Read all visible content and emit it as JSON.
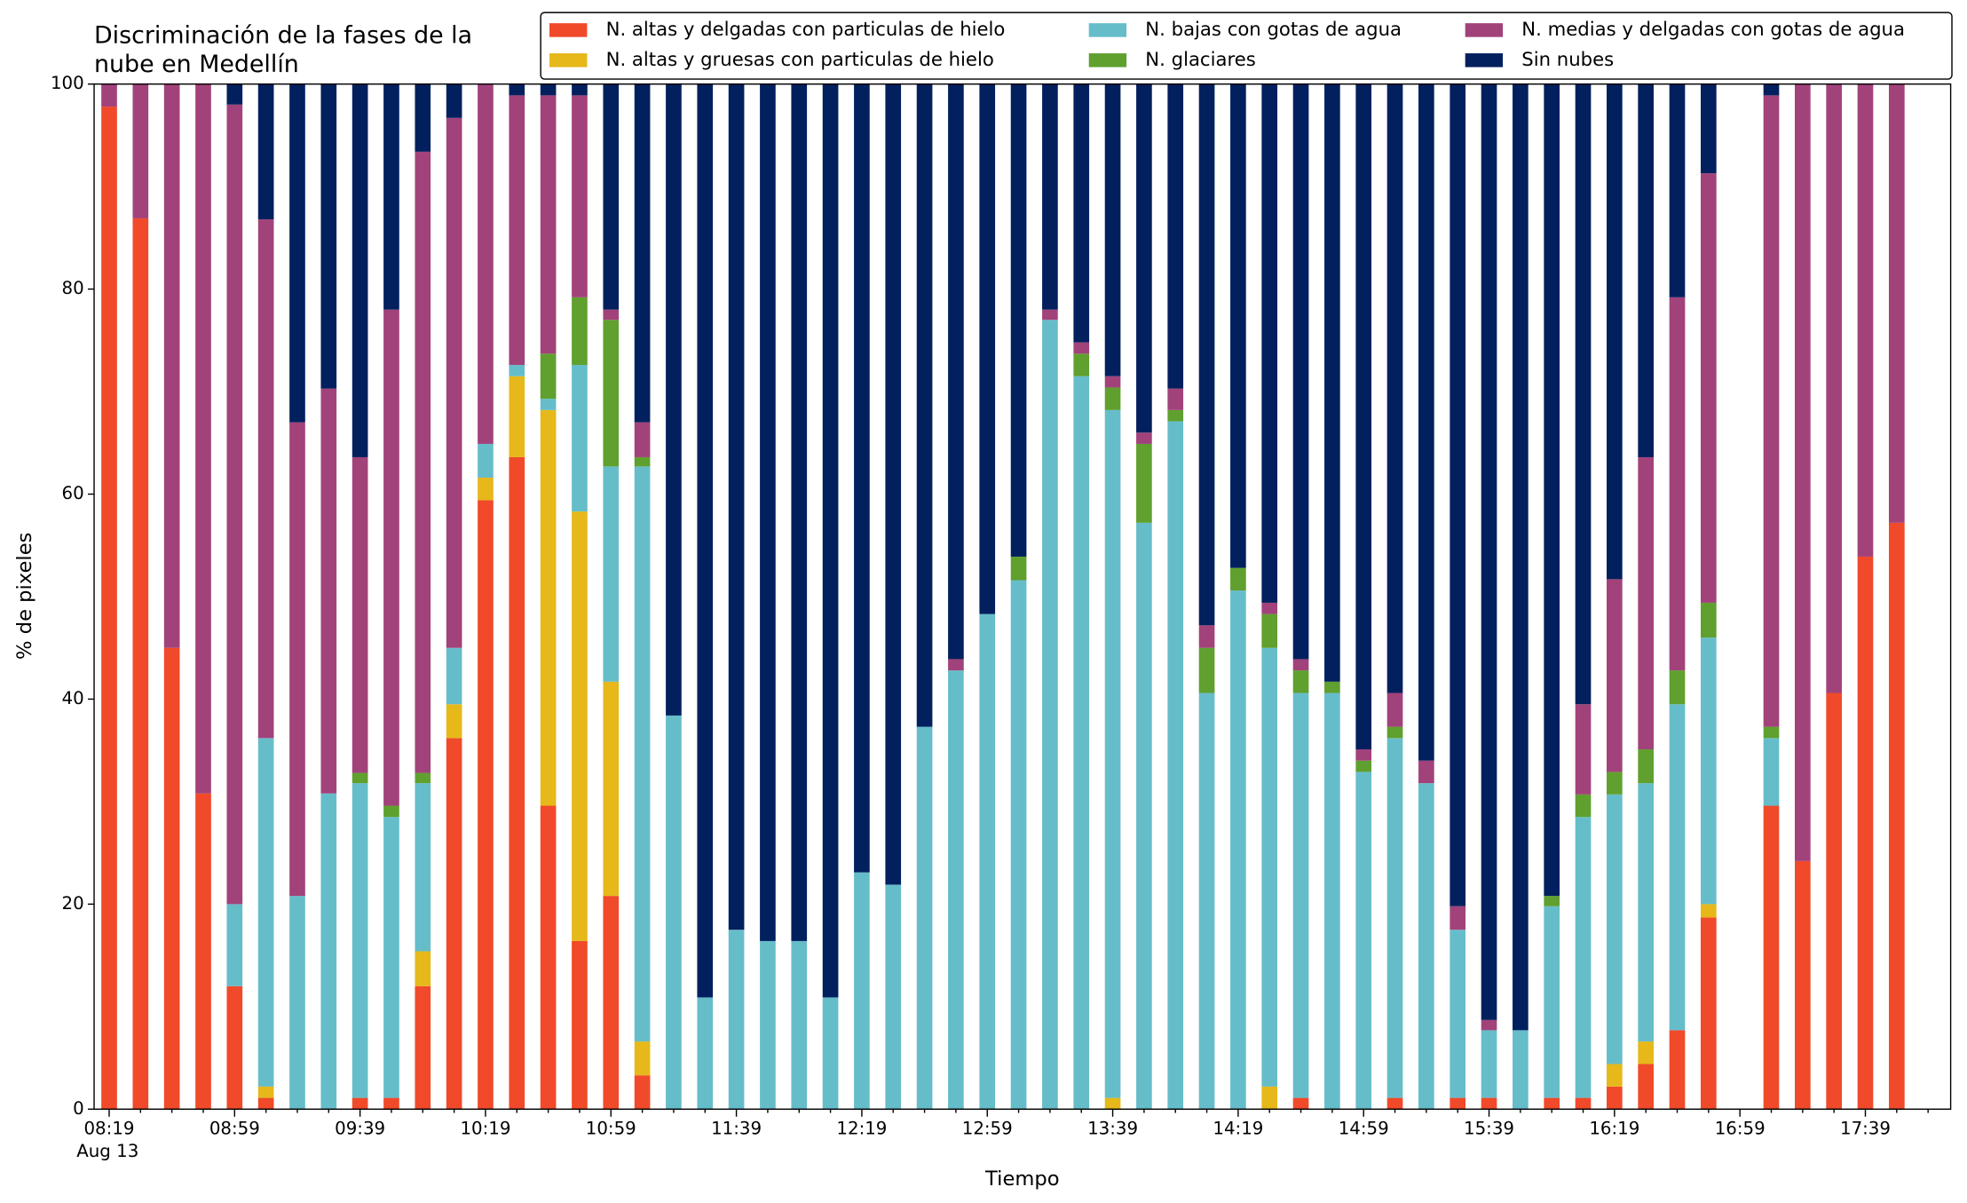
{
  "chart_data": {
    "type": "stacked_bar",
    "title": [
      "Discriminación de la fases de la",
      "nube en Medellín"
    ],
    "x_label": "Tiempo",
    "y_label": "% de pixeles",
    "categories": [
      "08:19",
      null,
      null,
      null,
      "08:59",
      null,
      null,
      null,
      "09:39",
      null,
      null,
      null,
      "10:19",
      null,
      null,
      null,
      "10:59",
      null,
      null,
      null,
      "11:39",
      null,
      null,
      null,
      "12:19",
      null,
      null,
      null,
      "12:59",
      null,
      null,
      null,
      "13:39",
      null,
      null,
      null,
      "14:19",
      null,
      null,
      null,
      "14:59",
      null,
      null,
      null,
      "15:39",
      null,
      null,
      null,
      "16:19",
      null,
      null,
      null,
      "16:59",
      null,
      null,
      null,
      "17:39",
      null
    ],
    "x_sublabel": "Aug 13",
    "ylim": [
      0,
      100
    ],
    "yticks": [
      0,
      20,
      40,
      60,
      80,
      100
    ],
    "series": [
      {
        "name": "N. altas y delgadas con particulas de hielo",
        "color": "#f04a2a",
        "values": [
          97.8,
          86.9,
          45,
          30.8,
          12,
          1.1,
          0,
          0,
          1.1,
          1.1,
          12,
          36.2,
          59.4,
          63.6,
          29.6,
          16.4,
          20.8,
          3.3,
          0,
          0,
          0,
          0,
          0,
          0,
          0,
          0,
          0,
          0,
          0,
          0,
          0,
          0,
          0,
          0,
          0,
          0,
          0,
          0,
          1.1,
          0,
          0,
          1.1,
          0,
          1.1,
          1.1,
          0,
          1.1,
          1.1,
          2.2,
          4.4,
          7.7,
          18.7,
          0,
          29.6,
          24.2,
          40.6,
          53.9,
          57.2
        ]
      },
      {
        "name": "N. altas y gruesas con particulas de hielo",
        "color": "#e6b81a",
        "values": [
          0,
          0,
          0,
          0,
          0,
          1.1,
          0,
          0,
          0,
          0,
          3.4,
          3.3,
          2.2,
          7.9,
          38.6,
          41.9,
          20.9,
          3.3,
          0,
          0,
          0,
          0,
          0,
          0,
          0,
          0,
          0,
          0,
          0,
          0,
          0,
          0,
          1.1,
          0,
          0,
          0,
          0,
          2.2,
          0,
          0,
          0,
          0,
          0,
          0,
          0,
          0,
          0,
          0,
          2.2,
          2.2,
          0,
          1.3,
          0,
          0,
          0,
          0,
          0,
          0
        ]
      },
      {
        "name": "N. bajas con gotas de agua",
        "color": "#66bdca",
        "values": [
          0,
          0,
          0,
          0,
          8,
          34,
          20.8,
          30.8,
          30.7,
          27.4,
          16.4,
          5.5,
          3.3,
          1.1,
          1.1,
          14.3,
          21,
          56.1,
          38.4,
          10.9,
          17.5,
          16.4,
          16.4,
          10.9,
          23.1,
          21.9,
          37.3,
          42.8,
          48.3,
          51.6,
          77,
          71.5,
          67.1,
          57.2,
          67.1,
          40.6,
          50.6,
          42.8,
          39.5,
          40.6,
          32.9,
          35.1,
          31.8,
          16.4,
          6.6,
          7.7,
          18.7,
          27.4,
          26.3,
          25.2,
          31.8,
          26,
          0,
          6.6,
          0,
          0,
          0,
          0
        ]
      },
      {
        "name": "N. glaciares",
        "color": "#5fa02f",
        "values": [
          0,
          0,
          0,
          0,
          0,
          0,
          0,
          0,
          1,
          1.1,
          1,
          0,
          0,
          0,
          4.4,
          6.6,
          14.3,
          0.9,
          0,
          0,
          0,
          0,
          0,
          0,
          0,
          0,
          0,
          0,
          0,
          2.3,
          0,
          2.2,
          2.2,
          7.7,
          1.1,
          4.4,
          2.2,
          3.3,
          2.2,
          1.1,
          1.1,
          1.1,
          0,
          0,
          0,
          0,
          1,
          2.2,
          2.2,
          3.3,
          3.3,
          3.4,
          0,
          1.1,
          0,
          0,
          0,
          0
        ]
      },
      {
        "name": "N. medias y delgadas con gotas de agua",
        "color": "#a2427a",
        "values": [
          2.2,
          13.1,
          55,
          69.2,
          78,
          50.6,
          46.2,
          39.5,
          30.8,
          48.4,
          60.6,
          51.7,
          35.1,
          26.3,
          25.2,
          19.7,
          1,
          3.4,
          0,
          0,
          0,
          0,
          0,
          0,
          0,
          0,
          0,
          1.1,
          0,
          0,
          1,
          1.1,
          1.1,
          1.1,
          2.1,
          2.2,
          0,
          1.1,
          1.1,
          0,
          1.1,
          3.3,
          2.2,
          2.3,
          1,
          0,
          0,
          8.8,
          18.8,
          28.5,
          36.4,
          41.9,
          0,
          61.6,
          75.8,
          59.4,
          46.1,
          42.8
        ]
      },
      {
        "name": "Sin nubes",
        "color": "#03205e",
        "values": [
          0,
          0,
          0,
          0,
          2,
          13.2,
          33,
          29.7,
          36.4,
          22,
          6.6,
          3.3,
          0,
          1.1,
          1.1,
          1.1,
          22,
          33,
          61.6,
          89.1,
          82.5,
          83.6,
          83.6,
          89.1,
          76.9,
          78.1,
          62.7,
          56.1,
          51.7,
          46.1,
          22,
          25.2,
          28.5,
          34,
          29.7,
          52.8,
          47.2,
          50.6,
          56.1,
          58.3,
          64.9,
          59.4,
          66,
          80.2,
          91.3,
          92.3,
          79.2,
          60.5,
          48.3,
          36.4,
          20.8,
          8.7,
          0,
          1.1,
          0,
          0,
          0,
          0
        ]
      }
    ]
  }
}
